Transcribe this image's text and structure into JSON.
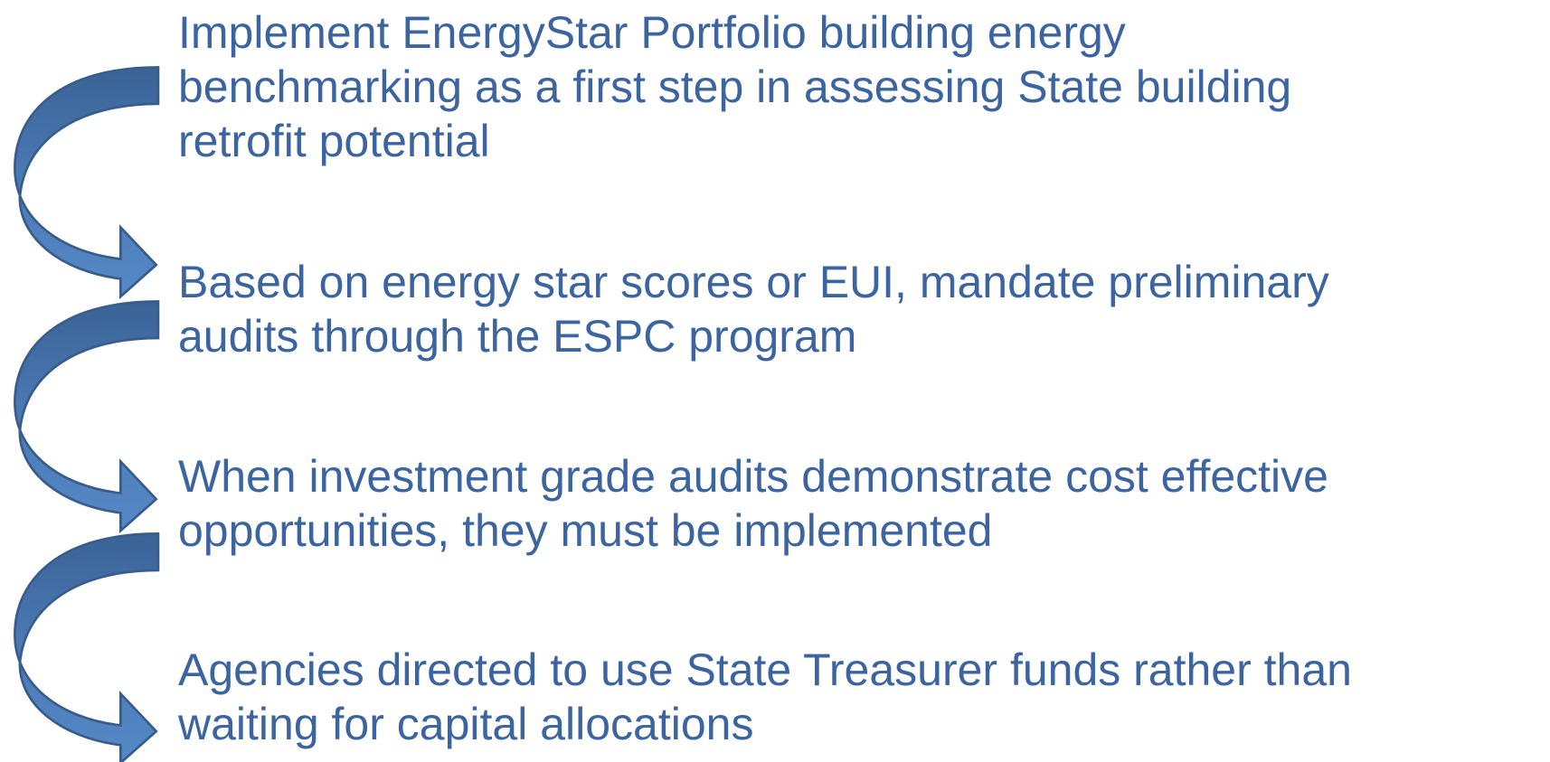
{
  "steps": [
    {
      "lines": [
        "Implement EnergyStar Portfolio building energy",
        "benchmarking as a first step in assessing State building",
        "retrofit potential"
      ]
    },
    {
      "lines": [
        "Based on energy star scores or EUI, mandate preliminary",
        "audits through the ESPC program"
      ]
    },
    {
      "lines": [
        "When investment grade audits demonstrate cost effective",
        "opportunities, they must be implemented"
      ]
    },
    {
      "lines": [
        "Agencies directed to use State Treasurer funds rather than",
        "waiting for capital allocations"
      ]
    }
  ]
}
